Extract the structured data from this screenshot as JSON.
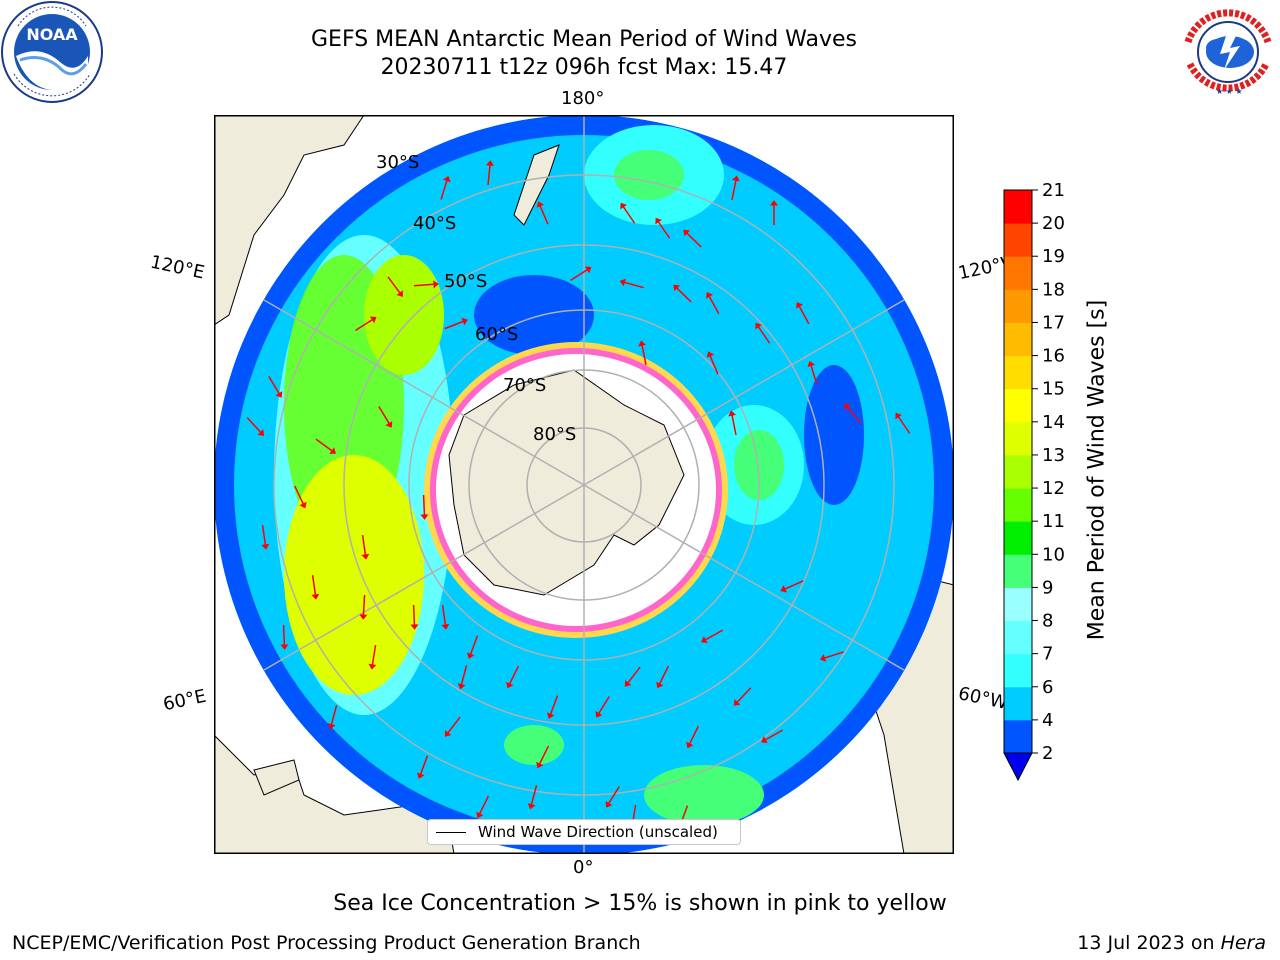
{
  "title": {
    "line1": "GEFS MEAN Antarctic Mean Period of Wind Waves",
    "line2": "20230711 t12z 096h fcst   Max: 15.47"
  },
  "logos": {
    "left": {
      "icon": "noaa-logo-icon",
      "text": "NOAA",
      "ring_text": "NATIONAL OCEANIC AND ATMOSPHERIC ADMINISTRATION · U.S. DEPARTMENT OF COMMERCE"
    },
    "right": {
      "icon": "nws-logo-icon",
      "ring_text": "NATIONAL WEATHER SERVICE"
    }
  },
  "map": {
    "projection": "south-polar-stereographic",
    "longitude_labels": [
      "180°",
      "120°E",
      "120°W",
      "60°E",
      "60°W",
      "0°"
    ],
    "latitude_labels": [
      "30°S",
      "40°S",
      "50°S",
      "60°S",
      "70°S",
      "80°S"
    ],
    "legend_label": "Wind Wave Direction (unscaled)",
    "arrow_color": "#ff0000",
    "land_color": "#efecdc",
    "ice_colors": [
      "#ff66cc",
      "#ffd84d"
    ]
  },
  "colorbar": {
    "label": "Mean Period of Wind Waves [s]",
    "ticks": [
      "21",
      "20",
      "19",
      "18",
      "17",
      "16",
      "15",
      "14",
      "13",
      "12",
      "11",
      "10",
      "9",
      "8",
      "7",
      "6",
      "4",
      "2"
    ],
    "colors": [
      "#0055ff",
      "#00ccff",
      "#33ffff",
      "#66ffff",
      "#99ffff",
      "#44ff77",
      "#00ee00",
      "#66ff00",
      "#aaff00",
      "#ddff00",
      "#ffff00",
      "#ffdd00",
      "#ffbb00",
      "#ff9900",
      "#ff7700",
      "#ff4400",
      "#ff0000"
    ],
    "under_color": "#0000ee"
  },
  "caption": "Sea Ice Concentration > 15% is shown in pink to yellow",
  "footer": {
    "left": "NCEP/EMC/Verification Post Processing Product Generation Branch",
    "right_date": "13 Jul 2023 on",
    "right_host": "Hera"
  }
}
